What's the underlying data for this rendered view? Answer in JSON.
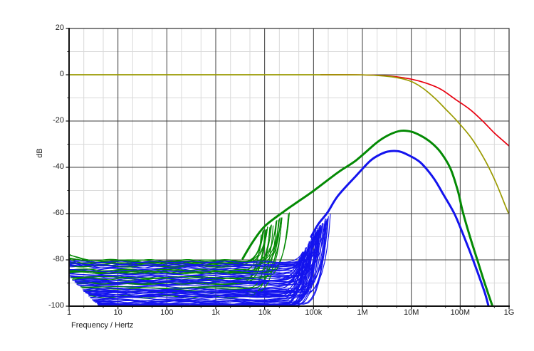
{
  "window": {
    "background": "#ffffff"
  },
  "chart_data": {
    "type": "line",
    "title": "",
    "xlabel": "Frequency / Hertz",
    "ylabel": "dB",
    "x_scale": "log",
    "x_range": [
      "1",
      "1G"
    ],
    "x_range_log10": [
      0,
      9
    ],
    "y_range": [
      -100,
      20
    ],
    "x_tick_labels": [
      "1",
      "10",
      "100",
      "1k",
      "10k",
      "100k",
      "1M",
      "10M",
      "100M",
      "1G"
    ],
    "y_tick_labels": [
      "20",
      "0",
      "-20",
      "-40",
      "-60",
      "-80",
      "-100"
    ],
    "y_ticks": [
      20,
      0,
      -20,
      -40,
      -60,
      -80,
      -100
    ],
    "y_minor_step_db": 10,
    "x_minor_multiples": [
      2,
      5
    ],
    "grid": {
      "major_color": "#3c3c3c",
      "minor_color": "#d9d9d9",
      "axis_color": "#111111",
      "frame_color": "#2d2d2d",
      "legend": "none"
    },
    "series": [
      {
        "name": "gain-flat-red",
        "color": "#e8000f",
        "width": 1.7,
        "description": "flat 0 dB response rolling off above ~30 MHz to -31 dB at 1 GHz",
        "points_log10f_db": [
          [
            5.15,
            0
          ],
          [
            5.6,
            0
          ],
          [
            6.0,
            -0.05
          ],
          [
            6.4,
            -0.35
          ],
          [
            6.7,
            -0.9
          ],
          [
            7.0,
            -1.9
          ],
          [
            7.3,
            -3.6
          ],
          [
            7.6,
            -6.2
          ],
          [
            7.9,
            -10.6
          ],
          [
            8.2,
            -15.0
          ],
          [
            8.46,
            -20.0
          ],
          [
            8.7,
            -25.2
          ],
          [
            8.85,
            -28.0
          ],
          [
            9.0,
            -30.8
          ]
        ]
      },
      {
        "name": "gain-flat-olive",
        "color": "#9a9a00",
        "width": 1.7,
        "description": "flat 0 dB response from 1 Hz rolling off above ~10 MHz to -60 dB at 1 GHz",
        "points_log10f_db": [
          [
            0,
            0
          ],
          [
            2.0,
            0
          ],
          [
            4.0,
            0
          ],
          [
            5.5,
            0
          ],
          [
            6.0,
            -0.05
          ],
          [
            6.3,
            -0.3
          ],
          [
            6.6,
            -0.9
          ],
          [
            6.85,
            -1.9
          ],
          [
            7.05,
            -3.4
          ],
          [
            7.25,
            -6.0
          ],
          [
            7.5,
            -10.5
          ],
          [
            7.7,
            -14.8
          ],
          [
            7.95,
            -20.3
          ],
          [
            8.24,
            -27.7
          ],
          [
            8.53,
            -37.8
          ],
          [
            8.74,
            -47.0
          ],
          [
            8.96,
            -58.5
          ],
          [
            9.0,
            -59.8
          ]
        ]
      },
      {
        "name": "noise-envelope-green",
        "color": "#048a04",
        "width": 3,
        "description": "band-pass shaped noise envelope peaking at about -24 dB near 6 MHz",
        "points_log10f_db": [
          [
            3.55,
            -79.5
          ],
          [
            3.75,
            -72.5
          ],
          [
            4.0,
            -65.5
          ],
          [
            4.4,
            -59.0
          ],
          [
            4.7,
            -54.6
          ],
          [
            5.0,
            -50.2
          ],
          [
            5.5,
            -42.2
          ],
          [
            5.87,
            -37.0
          ],
          [
            6.3,
            -29.2
          ],
          [
            6.55,
            -25.9
          ],
          [
            6.79,
            -24.2
          ],
          [
            7.0,
            -24.6
          ],
          [
            7.2,
            -26.4
          ],
          [
            7.4,
            -29.2
          ],
          [
            7.6,
            -33.5
          ],
          [
            7.8,
            -40.5
          ],
          [
            7.95,
            -50.0
          ],
          [
            8.05,
            -59.0
          ],
          [
            8.2,
            -70.0
          ],
          [
            8.35,
            -80.0
          ],
          [
            8.5,
            -90.0
          ],
          [
            8.66,
            -100
          ]
        ]
      },
      {
        "name": "noise-envelope-blue",
        "color": "#1414ee",
        "width": 3,
        "description": "band-pass shaped noise envelope peaking at about -33 dB near 3 MHz",
        "points_log10f_db": [
          [
            4.95,
            -70.0
          ],
          [
            5.1,
            -64.5
          ],
          [
            5.29,
            -59.4
          ],
          [
            5.5,
            -52.3
          ],
          [
            5.87,
            -43.7
          ],
          [
            6.16,
            -37.2
          ],
          [
            6.35,
            -34.6
          ],
          [
            6.52,
            -33.2
          ],
          [
            6.72,
            -33.0
          ],
          [
            6.9,
            -34.3
          ],
          [
            7.18,
            -37.8
          ],
          [
            7.45,
            -44.5
          ],
          [
            7.65,
            -51.5
          ],
          [
            7.88,
            -60.0
          ],
          [
            8.05,
            -68.5
          ],
          [
            8.2,
            -76.5
          ],
          [
            8.35,
            -85.0
          ],
          [
            8.5,
            -94.0
          ],
          [
            8.58,
            -100
          ]
        ]
      }
    ],
    "noise_band": {
      "description": "dense bundle of Monte-Carlo noise traces filling -80 dB to -100 dB from 1 Hz to ~50 kHz, fanning up to join the envelope curves",
      "seed": 11,
      "band_top_db": -80.5,
      "band_bottom_db": -100,
      "left_edge": {
        "blue_top_db": -79,
        "blue_diag_from_db": -87,
        "blue_diag_end_log10": 0.62,
        "green_wedge_top_db": -74.5
      },
      "blue": {
        "color": "#1414ee",
        "trace_count": 78,
        "level_range_db": [
          -100,
          -80.6
        ],
        "rise_log10_range": [
          4.25,
          4.85
        ]
      },
      "green": {
        "color": "#048a04",
        "trace_count": 26,
        "level_range_db": [
          -96,
          -80.2
        ],
        "rise_log10_range": [
          3.5,
          4.05
        ]
      }
    }
  }
}
